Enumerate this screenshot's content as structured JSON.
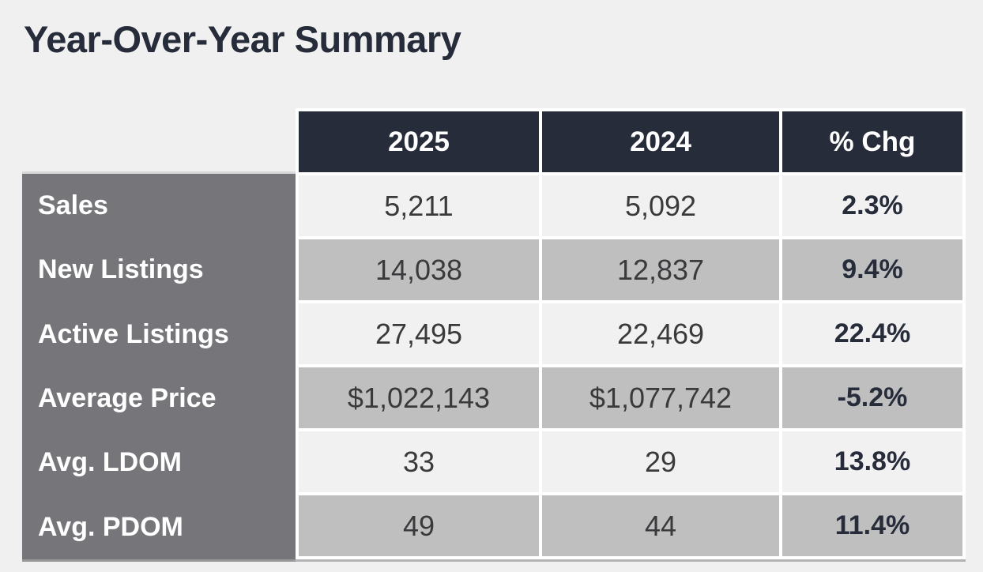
{
  "page": {
    "title": "Year-Over-Year Summary"
  },
  "chart_data": {
    "type": "table",
    "title": "Year-Over-Year Summary",
    "columns": [
      "2025",
      "2024",
      "% Chg"
    ],
    "rows": [
      {
        "label": "Sales",
        "y2025": "5,211",
        "y2024": "5,092",
        "pct_chg": "2.3%"
      },
      {
        "label": "New Listings",
        "y2025": "14,038",
        "y2024": "12,837",
        "pct_chg": "9.4%"
      },
      {
        "label": "Active Listings",
        "y2025": "27,495",
        "y2024": "22,469",
        "pct_chg": "22.4%"
      },
      {
        "label": "Average Price",
        "y2025": "$1,022,143",
        "y2024": "$1,077,742",
        "pct_chg": "-5.2%"
      },
      {
        "label": "Avg. LDOM",
        "y2025": "33",
        "y2024": "29",
        "pct_chg": "13.8%"
      },
      {
        "label": "Avg. PDOM",
        "y2025": "49",
        "y2024": "44",
        "pct_chg": "11.4%"
      }
    ]
  },
  "colors": {
    "page_background": "#f0f0f1",
    "header_background": "#272c3a",
    "header_text": "#ffffff",
    "row_label_background": "#76767a",
    "row_label_text": "#ffffff",
    "cell_light": "#f1f1f2",
    "cell_shaded": "#bfbfc0",
    "value_text": "#3a3a3c",
    "pct_text": "#272c3a",
    "cell_gap": "#ffffff"
  }
}
